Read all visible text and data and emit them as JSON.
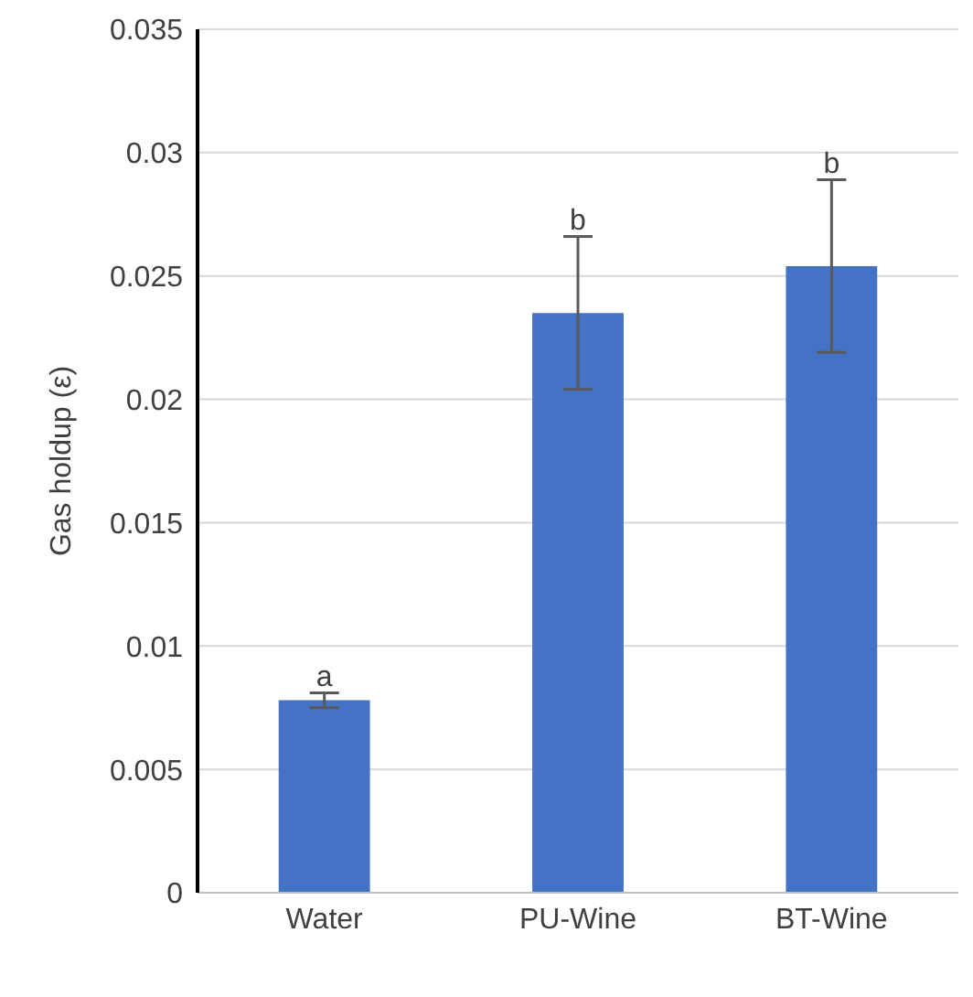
{
  "chart_data": {
    "type": "bar",
    "ylabel": "Gas holdup (ε)",
    "categories": [
      "Water",
      "PU-Wine",
      "BT-Wine"
    ],
    "values": [
      0.0078,
      0.0235,
      0.0254
    ],
    "errors": [
      0.0003,
      0.0031,
      0.0035
    ],
    "color": "#4472c4",
    "ylim": [
      0,
      0.035
    ],
    "yticks": [
      0,
      0.005,
      0.01,
      0.015,
      0.02,
      0.025,
      0.03,
      0.035
    ],
    "grid": "y",
    "annotations": [
      {
        "text": "a",
        "x": "Water",
        "y": 0.0081
      },
      {
        "text": "b",
        "x": "PU-Wine",
        "y": 0.0266
      },
      {
        "text": "b",
        "x": "BT-Wine",
        "y": 0.0289
      }
    ]
  }
}
